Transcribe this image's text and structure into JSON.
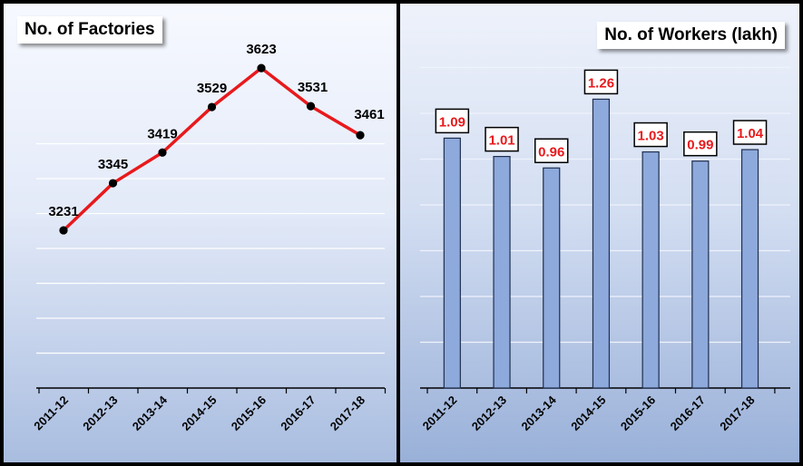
{
  "left_chart": {
    "title": "No. of Factories",
    "categories": [
      "2011-12",
      "2012-13",
      "2013-14",
      "2014-15",
      "2015-16",
      "2016-17",
      "2017-18"
    ],
    "values": [
      3231,
      3345,
      3419,
      3529,
      3623,
      3531,
      3461
    ],
    "line_color": "#e8191c",
    "marker_color": "#000000"
  },
  "right_chart": {
    "title": "No. of Workers (lakh)",
    "categories": [
      "2011-12",
      "2012-13",
      "2013-14",
      "2014-15",
      "2015-16",
      "2016-17",
      "2017-18"
    ],
    "values": [
      "1.09",
      "1.01",
      "0.96",
      "1.26",
      "1.03",
      "0.99",
      "1.04"
    ],
    "bar_color": "#8ea9db",
    "label_color": "#e8191c"
  },
  "chart_data": [
    {
      "type": "line",
      "title": "No. of Factories",
      "categories": [
        "2011-12",
        "2012-13",
        "2013-14",
        "2014-15",
        "2015-16",
        "2016-17",
        "2017-18"
      ],
      "series": [
        {
          "values": [
            3231,
            3345,
            3419,
            3529,
            3623,
            3531,
            3461
          ]
        }
      ],
      "ylim": [
        2850,
        3700
      ],
      "grid": true
    },
    {
      "type": "bar",
      "title": "No. of Workers (lakh)",
      "categories": [
        "2011-12",
        "2012-13",
        "2013-14",
        "2014-15",
        "2015-16",
        "2016-17",
        "2017-18"
      ],
      "series": [
        {
          "values": [
            1.09,
            1.01,
            0.96,
            1.26,
            1.03,
            0.99,
            1.04
          ]
        }
      ],
      "ylim": [
        0,
        1.4
      ],
      "grid": true
    }
  ]
}
